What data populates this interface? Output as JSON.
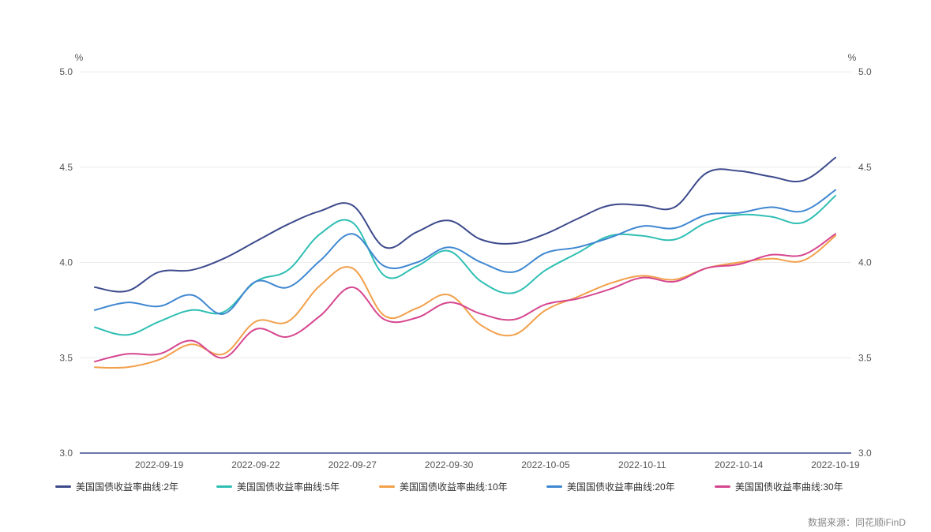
{
  "source_note": "数据来源：同花顺iFinD",
  "chart_data": {
    "type": "line",
    "left_axis": {
      "unit": "%",
      "ticks": [
        "5.0",
        "4.5",
        "4.0",
        "3.5",
        "3.0"
      ]
    },
    "right_axis": {
      "unit": "%",
      "ticks": [
        "5.0",
        "4.5",
        "4.0",
        "3.5",
        "3.0"
      ]
    },
    "ylim": [
      3.0,
      5.0
    ],
    "grid": true,
    "legend_position": "bottom",
    "x_tick_labels": [
      "2022-09-19",
      "2022-09-22",
      "2022-09-27",
      "2022-09-30",
      "2022-10-05",
      "2022-10-11",
      "2022-10-14",
      "2022-10-19"
    ],
    "x": [
      "2022-09-15",
      "2022-09-16",
      "2022-09-19",
      "2022-09-20",
      "2022-09-21",
      "2022-09-22",
      "2022-09-23",
      "2022-09-26",
      "2022-09-27",
      "2022-09-28",
      "2022-09-29",
      "2022-09-30",
      "2022-10-03",
      "2022-10-04",
      "2022-10-05",
      "2022-10-06",
      "2022-10-07",
      "2022-10-11",
      "2022-10-12",
      "2022-10-13",
      "2022-10-14",
      "2022-10-17",
      "2022-10-18",
      "2022-10-19"
    ],
    "series": [
      {
        "name": "美国国债收益率曲线:2年",
        "color": "#3d4a8c",
        "values": [
          3.87,
          3.85,
          3.95,
          3.96,
          4.02,
          4.11,
          4.2,
          4.27,
          4.3,
          4.08,
          4.16,
          4.22,
          4.12,
          4.1,
          4.15,
          4.23,
          4.3,
          4.3,
          4.29,
          4.47,
          4.48,
          4.45,
          4.43,
          4.55
        ]
      },
      {
        "name": "美国国债收益率曲线:5年",
        "color": "#2fbfb4",
        "values": [
          3.66,
          3.62,
          3.69,
          3.75,
          3.74,
          3.9,
          3.96,
          4.15,
          4.21,
          3.93,
          3.98,
          4.06,
          3.9,
          3.84,
          3.96,
          4.05,
          4.14,
          4.14,
          4.12,
          4.21,
          4.25,
          4.24,
          4.21,
          4.35
        ]
      },
      {
        "name": "美国国债收益率曲线:10年",
        "color": "#f2a04b",
        "values": [
          3.45,
          3.45,
          3.49,
          3.57,
          3.52,
          3.69,
          3.69,
          3.88,
          3.97,
          3.72,
          3.76,
          3.83,
          3.67,
          3.62,
          3.75,
          3.82,
          3.89,
          3.93,
          3.91,
          3.97,
          4.0,
          4.02,
          4.01,
          4.14
        ]
      },
      {
        "name": "美国国债收益率曲线:20年",
        "color": "#3f87d1",
        "values": [
          3.75,
          3.79,
          3.77,
          3.83,
          3.73,
          3.9,
          3.87,
          4.01,
          4.15,
          3.98,
          4.0,
          4.08,
          4.0,
          3.95,
          4.05,
          4.08,
          4.13,
          4.19,
          4.18,
          4.25,
          4.26,
          4.29,
          4.27,
          4.38
        ]
      },
      {
        "name": "美国国债收益率曲线:30年",
        "color": "#d6468f",
        "values": [
          3.48,
          3.52,
          3.52,
          3.59,
          3.5,
          3.65,
          3.61,
          3.72,
          3.87,
          3.7,
          3.71,
          3.79,
          3.73,
          3.7,
          3.78,
          3.81,
          3.86,
          3.92,
          3.9,
          3.97,
          3.99,
          4.04,
          4.04,
          4.15
        ]
      }
    ]
  }
}
